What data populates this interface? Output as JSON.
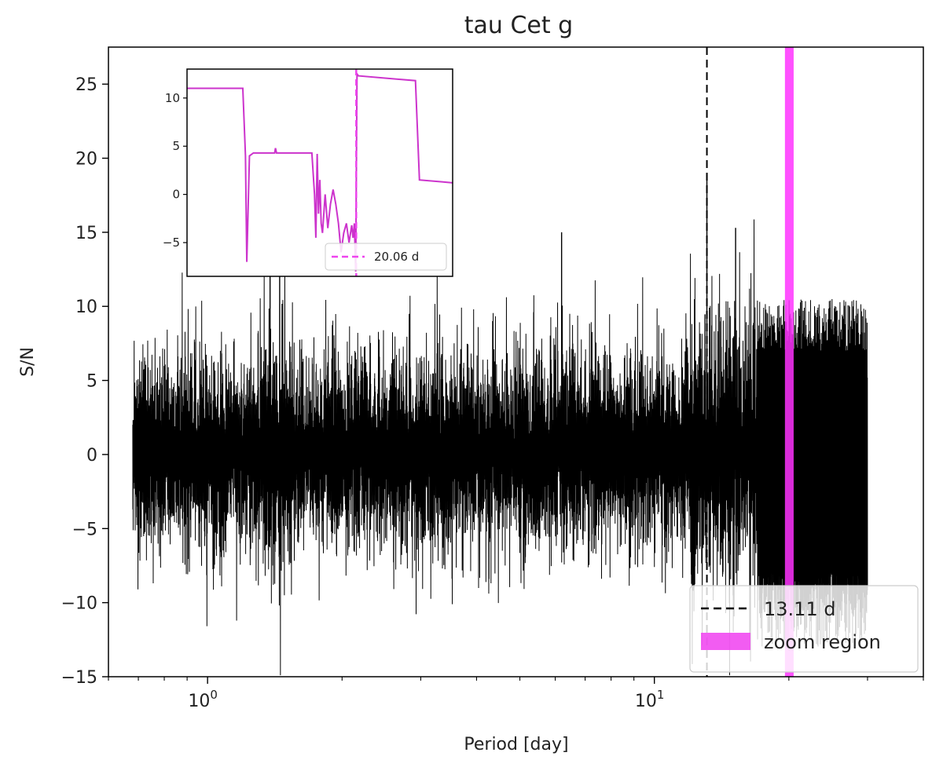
{
  "chart_data": [
    {
      "type": "line",
      "title": "tau Cet g",
      "xlabel": "Period [day]",
      "ylabel": "S/N",
      "xscale": "log",
      "xlim": [
        0.6,
        40
      ],
      "ylim": [
        -15,
        27.5
      ],
      "x_ticks": [
        {
          "value": 1,
          "base": "10",
          "exp": "0"
        },
        {
          "value": 10,
          "base": "10",
          "exp": "1"
        }
      ],
      "y_ticks": [
        -15,
        -10,
        -5,
        0,
        5,
        10,
        15,
        20,
        25
      ],
      "y_tick_labels": [
        "−15",
        "−10",
        "−5",
        "0",
        "5",
        "10",
        "15",
        "20",
        "25"
      ],
      "grid": false,
      "x_range_data": [
        0.68,
        30
      ],
      "series": [
        {
          "color": "#000000",
          "style": "noisy periodogram, amplitude ~ -10 to 15"
        }
      ],
      "notable_peaks": [
        {
          "x": 1.38,
          "y": 12.5
        },
        {
          "x": 1.45,
          "y": 12.2
        },
        {
          "x": 6.2,
          "y": 15.0
        },
        {
          "x": 13.11,
          "y": 19.0
        },
        {
          "x": 15.2,
          "y": 15.3
        }
      ],
      "vlines": [
        {
          "x": 13.11,
          "label": "13.11 d",
          "style": "dashed",
          "color": "#000000"
        }
      ],
      "vspan": {
        "x": [
          19.6,
          20.5
        ],
        "label": "zoom region",
        "color": "#ff33ff"
      },
      "legend": {
        "placement": "lower-right",
        "entries": [
          {
            "label": "13.11 d",
            "kind": "dashed-line",
            "color": "#000000"
          },
          {
            "label": "zoom region",
            "kind": "patch",
            "color": "#f040f0"
          }
        ]
      }
    },
    {
      "type": "line",
      "role": "inset",
      "ylim": [
        -8.5,
        13
      ],
      "y_ticks": [
        -5,
        0,
        5,
        10
      ],
      "y_tick_labels": [
        "−5",
        "0",
        "5",
        "10"
      ],
      "x_units_relative": [
        0,
        1
      ],
      "series": [
        {
          "color": "#cc33cc",
          "points": [
            [
              0.0,
              11.0
            ],
            [
              0.21,
              11.0
            ],
            [
              0.22,
              4.0
            ],
            [
              0.225,
              -7.0
            ],
            [
              0.235,
              4.0
            ],
            [
              0.25,
              4.3
            ],
            [
              0.33,
              4.3
            ],
            [
              0.333,
              4.8
            ],
            [
              0.337,
              4.3
            ],
            [
              0.45,
              4.3
            ],
            [
              0.47,
              4.3
            ],
            [
              0.48,
              0.0
            ],
            [
              0.485,
              -4.5
            ],
            [
              0.49,
              4.2
            ],
            [
              0.495,
              -2.0
            ],
            [
              0.5,
              1.5
            ],
            [
              0.505,
              -3.0
            ],
            [
              0.51,
              -4.0
            ],
            [
              0.515,
              -2.0
            ],
            [
              0.52,
              0.0
            ],
            [
              0.53,
              -3.5
            ],
            [
              0.54,
              -1.0
            ],
            [
              0.55,
              0.5
            ],
            [
              0.56,
              -1.0
            ],
            [
              0.57,
              -3.0
            ],
            [
              0.58,
              -6.0
            ],
            [
              0.59,
              -4.0
            ],
            [
              0.6,
              -3.0
            ],
            [
              0.61,
              -5.0
            ],
            [
              0.62,
              -3.2
            ],
            [
              0.625,
              -4.5
            ],
            [
              0.63,
              -3.0
            ],
            [
              0.635,
              -8.0
            ],
            [
              0.64,
              12.5
            ],
            [
              0.645,
              12.3
            ],
            [
              0.86,
              11.8
            ],
            [
              0.875,
              1.5
            ],
            [
              0.96,
              1.3
            ],
            [
              1.0,
              1.2
            ]
          ]
        }
      ],
      "vlines": [
        {
          "x_rel": 0.637,
          "label": "20.06 d",
          "style": "dashed",
          "color": "#ee44ee"
        }
      ],
      "legend": {
        "placement": "lower-right",
        "entries": [
          {
            "label": "20.06 d",
            "kind": "dashed-line",
            "color": "#ee44ee"
          }
        ]
      }
    }
  ]
}
